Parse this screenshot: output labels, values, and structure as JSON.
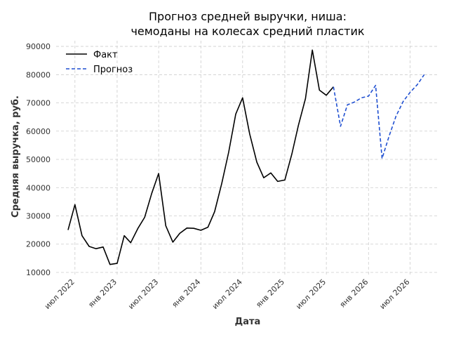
{
  "chart_data": {
    "type": "line",
    "title": [
      "Прогноз средней выручки, ниша:",
      "чемоданы на колесах средний пластик"
    ],
    "xlabel": "Дата",
    "ylabel": "Средняя выручка, руб.",
    "ylim": [
      9000,
      92000
    ],
    "yticks": [
      10000,
      20000,
      30000,
      40000,
      50000,
      60000,
      70000,
      80000,
      90000
    ],
    "xlim": [
      "2022-04-10",
      "2026-11-05"
    ],
    "xticks": [
      {
        "date": "2022-07-01",
        "label": "июл 2022"
      },
      {
        "date": "2023-01-01",
        "label": "янв 2023"
      },
      {
        "date": "2023-07-01",
        "label": "июл 2023"
      },
      {
        "date": "2024-01-01",
        "label": "янв 2024"
      },
      {
        "date": "2024-07-01",
        "label": "июл 2024"
      },
      {
        "date": "2025-01-01",
        "label": "янв 2025"
      },
      {
        "date": "2025-07-01",
        "label": "июл 2025"
      },
      {
        "date": "2026-01-01",
        "label": "янв 2026"
      },
      {
        "date": "2026-07-01",
        "label": "июл 2026"
      }
    ],
    "grid": true,
    "legend": "top-left",
    "series": [
      {
        "name": "Факт",
        "color": "#000000",
        "style": "solid",
        "x": [
          "2022-06-01",
          "2022-07-01",
          "2022-08-01",
          "2022-09-01",
          "2022-10-01",
          "2022-11-01",
          "2022-12-01",
          "2023-01-01",
          "2023-02-01",
          "2023-03-01",
          "2023-04-01",
          "2023-05-01",
          "2023-06-01",
          "2023-07-01",
          "2023-08-01",
          "2023-09-01",
          "2023-10-01",
          "2023-11-01",
          "2023-12-01",
          "2024-01-01",
          "2024-02-01",
          "2024-03-01",
          "2024-04-01",
          "2024-05-01",
          "2024-06-01",
          "2024-07-01",
          "2024-08-01",
          "2024-09-01",
          "2024-10-01",
          "2024-11-01",
          "2024-12-01",
          "2025-01-01",
          "2025-02-01",
          "2025-03-01",
          "2025-04-01",
          "2025-05-01",
          "2025-06-01",
          "2025-07-01",
          "2025-08-01"
        ],
        "values": [
          25000,
          34000,
          23000,
          19200,
          18400,
          19000,
          12800,
          13200,
          23000,
          20500,
          25500,
          29500,
          38000,
          45000,
          26500,
          20700,
          23800,
          25700,
          25600,
          24900,
          26000,
          31500,
          41500,
          52500,
          66000,
          71800,
          59000,
          49000,
          43500,
          45200,
          42200,
          42700,
          52000,
          62000,
          71500,
          88700,
          74500,
          72700,
          75700
        ]
      },
      {
        "name": "Прогноз",
        "color": "#1f4fd1",
        "style": "dashed",
        "x": [
          "2025-08-01",
          "2025-09-01",
          "2025-10-01",
          "2025-11-01",
          "2025-12-01",
          "2026-01-01",
          "2026-02-01",
          "2026-03-01",
          "2026-04-01",
          "2026-05-01",
          "2026-06-01",
          "2026-07-01",
          "2026-08-01",
          "2026-09-01",
          "2026-10-01"
        ],
        "values": [
          75700,
          61700,
          69300,
          70300,
          71800,
          72400,
          76200,
          50300,
          58300,
          65300,
          70500,
          73700,
          76400,
          80000,
          null
        ]
      }
    ]
  }
}
